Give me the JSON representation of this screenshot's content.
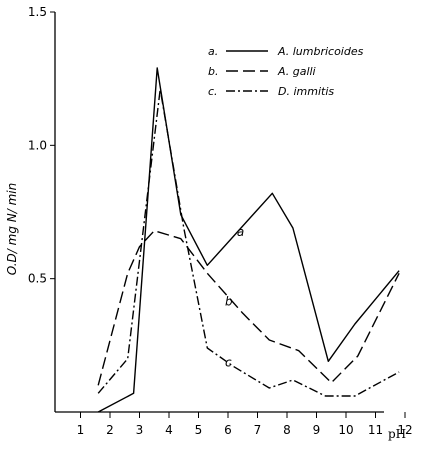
{
  "chart_data": {
    "type": "line",
    "xlabel": "pH",
    "ylabel": "O.D/ mg N/ min",
    "x_ticks": [
      "1",
      "2",
      "3",
      "4",
      "5",
      "6",
      "7",
      "8",
      "9",
      "10",
      "11",
      "12"
    ],
    "y_ticks": [
      "0.5",
      "1.0",
      "1.5"
    ],
    "xlim": [
      0,
      12.5
    ],
    "ylim": [
      0,
      1.5
    ],
    "grid": false,
    "legend": "top-right",
    "series": [
      {
        "key": "a.",
        "name": "A. lumbricoides",
        "label": "a",
        "dash": "solid",
        "points": [
          [
            1.6,
            0.0
          ],
          [
            2.8,
            0.07
          ],
          [
            3.6,
            1.29
          ],
          [
            4.4,
            0.74
          ],
          [
            5.3,
            0.55
          ],
          [
            7.5,
            0.82
          ],
          [
            8.2,
            0.69
          ],
          [
            9.4,
            0.19
          ],
          [
            10.3,
            0.33
          ],
          [
            11.8,
            0.53
          ]
        ]
      },
      {
        "key": "b.",
        "name": "A. galli",
        "label": "b",
        "dash": "dashed",
        "points": [
          [
            1.6,
            0.1
          ],
          [
            2.6,
            0.52
          ],
          [
            3.0,
            0.62
          ],
          [
            3.5,
            0.68
          ],
          [
            4.4,
            0.65
          ],
          [
            5.3,
            0.52
          ],
          [
            6.5,
            0.37
          ],
          [
            7.4,
            0.27
          ],
          [
            8.4,
            0.23
          ],
          [
            9.5,
            0.11
          ],
          [
            10.4,
            0.21
          ],
          [
            11.8,
            0.52
          ]
        ]
      },
      {
        "key": "c.",
        "name": "D. immitis",
        "label": "c",
        "dash": "dashdot",
        "points": [
          [
            1.6,
            0.07
          ],
          [
            2.6,
            0.2
          ],
          [
            3.7,
            1.21
          ],
          [
            4.5,
            0.69
          ],
          [
            5.3,
            0.24
          ],
          [
            6.2,
            0.17
          ],
          [
            7.4,
            0.09
          ],
          [
            8.2,
            0.12
          ],
          [
            9.3,
            0.06
          ],
          [
            10.3,
            0.06
          ],
          [
            11.8,
            0.15
          ]
        ]
      }
    ]
  }
}
